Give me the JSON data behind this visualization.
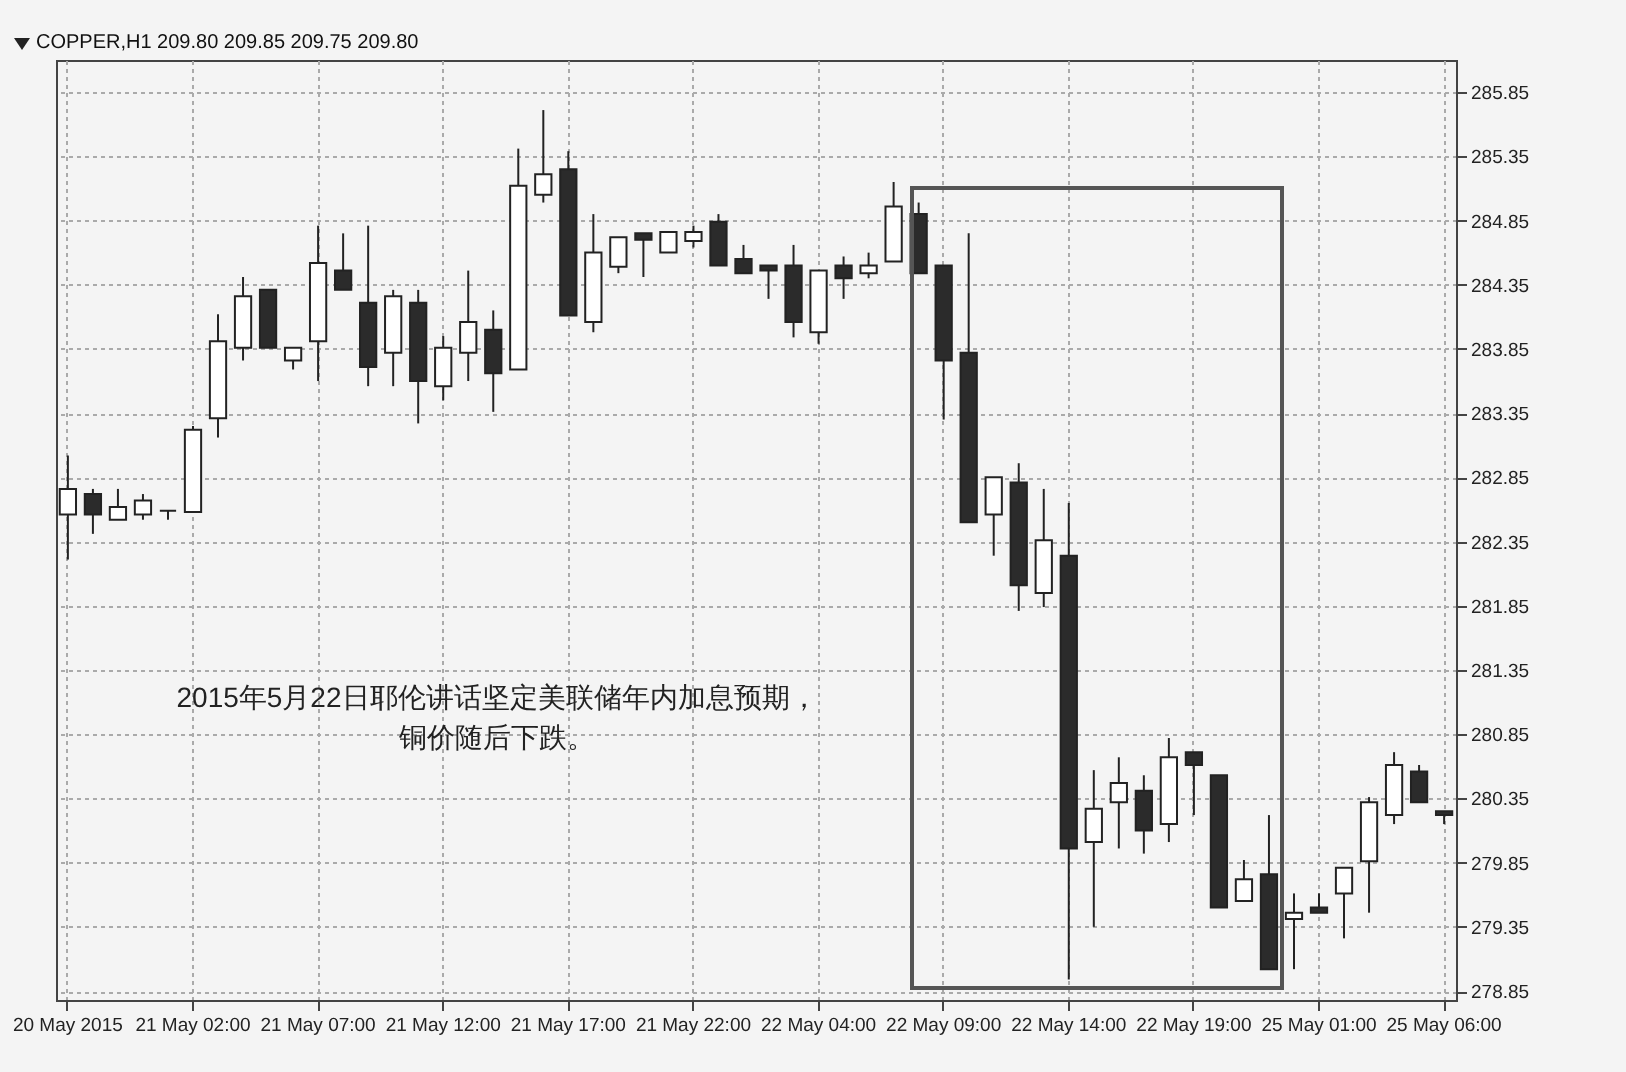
{
  "chart_data": {
    "type": "candlestick",
    "title": "COPPER,H1  209.80 209.85 209.75 209.80",
    "categories": [
      "20 May 2015",
      null,
      null,
      null,
      null,
      "21 May 02:00",
      null,
      null,
      null,
      null,
      "21 May 07:00",
      null,
      null,
      null,
      null,
      "21 May 12:00",
      null,
      null,
      null,
      null,
      "21 May 17:00",
      null,
      null,
      null,
      null,
      "21 May 22:00",
      null,
      null,
      null,
      null,
      "22 May 04:00",
      null,
      null,
      null,
      null,
      "22 May 09:00",
      null,
      null,
      null,
      null,
      "22 May 14:00",
      null,
      null,
      null,
      null,
      "22 May 19:00",
      null,
      null,
      null,
      null,
      "25 May 01:00",
      null,
      null,
      null,
      null,
      "25 May 06:00"
    ],
    "ohlc": [
      [
        282.56,
        283.02,
        282.21,
        282.76
      ],
      [
        282.72,
        282.76,
        282.41,
        282.56
      ],
      [
        282.52,
        282.76,
        282.52,
        282.62
      ],
      [
        282.56,
        282.72,
        282.52,
        282.67
      ],
      [
        282.59,
        282.59,
        282.52,
        282.59
      ],
      [
        282.58,
        283.25,
        282.58,
        283.22
      ],
      [
        283.31,
        284.12,
        283.16,
        283.91
      ],
      [
        283.86,
        284.41,
        283.76,
        284.26
      ],
      [
        284.31,
        284.31,
        283.86,
        283.86
      ],
      [
        283.76,
        283.86,
        283.69,
        283.86
      ],
      [
        283.91,
        284.81,
        283.6,
        284.52
      ],
      [
        284.46,
        284.75,
        284.31,
        284.31
      ],
      [
        284.21,
        284.81,
        283.56,
        283.71
      ],
      [
        283.82,
        284.31,
        283.56,
        284.26
      ],
      [
        284.21,
        284.31,
        283.27,
        283.6
      ],
      [
        283.56,
        283.95,
        283.45,
        283.86
      ],
      [
        283.82,
        284.46,
        283.6,
        284.06
      ],
      [
        284.0,
        284.15,
        283.36,
        283.66
      ],
      [
        283.69,
        285.41,
        283.69,
        285.12
      ],
      [
        285.05,
        285.71,
        284.99,
        285.21
      ],
      [
        285.25,
        285.39,
        284.11,
        284.11
      ],
      [
        284.06,
        284.9,
        283.98,
        284.6
      ],
      [
        284.49,
        284.72,
        284.44,
        284.72
      ],
      [
        284.75,
        284.75,
        284.41,
        284.7
      ],
      [
        284.6,
        284.76,
        284.6,
        284.76
      ],
      [
        284.69,
        284.81,
        284.64,
        284.76
      ],
      [
        284.84,
        284.9,
        284.5,
        284.5
      ],
      [
        284.55,
        284.66,
        284.44,
        284.44
      ],
      [
        284.5,
        284.5,
        284.24,
        284.46
      ],
      [
        284.5,
        284.66,
        283.94,
        284.06
      ],
      [
        283.98,
        284.46,
        283.89,
        284.46
      ],
      [
        284.5,
        284.57,
        284.24,
        284.4
      ],
      [
        284.44,
        284.6,
        284.4,
        284.5
      ],
      [
        284.53,
        285.15,
        284.53,
        284.96
      ],
      [
        284.9,
        284.99,
        284.44,
        284.44
      ],
      [
        284.5,
        284.5,
        283.3,
        283.76
      ],
      [
        283.82,
        284.75,
        282.5,
        282.5
      ],
      [
        282.56,
        282.85,
        282.24,
        282.85
      ],
      [
        282.81,
        282.96,
        281.81,
        282.01
      ],
      [
        281.95,
        282.76,
        281.84,
        282.36
      ],
      [
        282.24,
        282.65,
        278.94,
        279.96
      ],
      [
        280.01,
        280.57,
        279.35,
        280.27
      ],
      [
        280.32,
        280.67,
        279.96,
        280.47
      ],
      [
        280.41,
        280.53,
        279.92,
        280.1
      ],
      [
        280.15,
        280.82,
        280.01,
        280.67
      ],
      [
        280.71,
        280.71,
        280.22,
        280.61
      ],
      [
        280.53,
        280.53,
        279.5,
        279.5
      ],
      [
        279.55,
        279.87,
        279.55,
        279.72
      ],
      [
        279.76,
        280.22,
        279.02,
        279.02
      ],
      [
        279.41,
        279.61,
        279.02,
        279.46
      ],
      [
        279.5,
        279.61,
        279.46,
        279.46
      ],
      [
        279.61,
        279.81,
        279.26,
        279.81
      ],
      [
        279.86,
        280.36,
        279.46,
        280.32
      ],
      [
        280.22,
        280.71,
        280.15,
        280.61
      ],
      [
        280.56,
        280.61,
        280.32,
        280.32
      ],
      [
        280.25,
        280.25,
        280.15,
        280.22
      ]
    ],
    "ylim": [
      278.78,
      286.1
    ],
    "yticks": [
      278.85,
      279.35,
      279.85,
      280.35,
      280.85,
      281.35,
      281.85,
      282.35,
      282.85,
      283.35,
      283.85,
      284.35,
      284.85,
      285.35,
      285.85
    ],
    "grid": true,
    "annotations": [
      "2015年5月22日耶伦讲话坚定美联储年内加息预期，",
      "铜价随后下跌。"
    ]
  }
}
